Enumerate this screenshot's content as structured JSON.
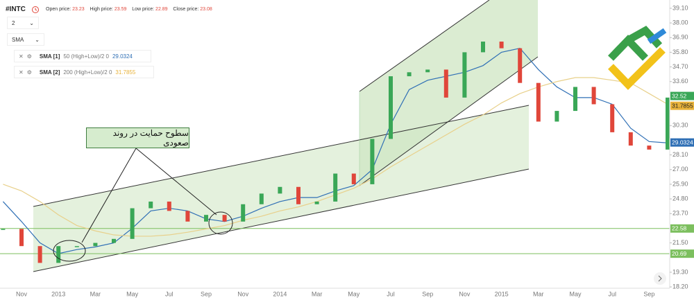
{
  "header": {
    "symbol": "#INTC",
    "open_label": "Open price:",
    "open": 23.23,
    "high_label": "High price:",
    "high": 23.59,
    "low_label": "Low price:",
    "low": 22.89,
    "close_label": "Close price:",
    "close": 23.08,
    "timeframe": "2",
    "indicator_select": "SMA"
  },
  "indicators": [
    {
      "name": "SMA [1]",
      "params": "50 (High+Low)/2 0",
      "value": 29.0324,
      "color": "#2f6fb5"
    },
    {
      "name": "SMA [2]",
      "params": "200 (High+Low)/2 0",
      "value": 31.7855,
      "color": "#e8b23a"
    }
  ],
  "annotation": "سطوح حمایت در روند صعودی",
  "chart_data": {
    "type": "candle-line",
    "categories": [
      null,
      "Nov",
      null,
      "2013",
      null,
      "Mar",
      null,
      "May",
      null,
      "Jul",
      null,
      "Sep",
      null,
      "Nov",
      null,
      "2014",
      null,
      "Mar",
      null,
      "May",
      null,
      "Jul",
      null,
      "Sep",
      null,
      "Nov",
      null,
      "2015",
      null,
      "Mar",
      null,
      "May",
      null,
      "Jul",
      null,
      "Sep",
      null
    ],
    "values": [
      22.55,
      21.26,
      20.0,
      21.26,
      21.26,
      21.5,
      21.8,
      24.1,
      24.6,
      23.9,
      23.1,
      23.6,
      23.1,
      24.4,
      25.2,
      25.7,
      24.4,
      24.6,
      26.7,
      25.9,
      29.3,
      34.0,
      34.3,
      34.5,
      32.4,
      35.8,
      36.6,
      36.1,
      33.5,
      30.6,
      31.4,
      33.2,
      31.9,
      29.8,
      28.8,
      28.5,
      32.4
    ],
    "up_color": "#3aa757",
    "down_color": "#e0463a",
    "series": [
      {
        "values": [
          24.6,
          23.1,
          21.5,
          20.7,
          21.0,
          21.2,
          21.5,
          22.6,
          23.9,
          24.1,
          23.9,
          23.3,
          23.1,
          23.5,
          24.1,
          24.6,
          24.9,
          24.9,
          25.4,
          25.8,
          27.0,
          30.4,
          33.0,
          33.7,
          34.0,
          34.3,
          34.8,
          35.8,
          36.1,
          34.5,
          33.2,
          32.4,
          32.4,
          31.9,
          30.1,
          29.1,
          29.0
        ],
        "color": "#2f6fb5"
      },
      {
        "values": [
          25.9,
          25.4,
          24.6,
          23.6,
          22.8,
          22.4,
          22.1,
          22.0,
          22.0,
          22.1,
          22.3,
          22.55,
          22.8,
          23.2,
          23.5,
          23.9,
          24.2,
          24.6,
          25.1,
          25.6,
          26.3,
          27.2,
          28.0,
          28.8,
          29.6,
          30.4,
          31.1,
          32.0,
          32.7,
          33.2,
          33.6,
          33.9,
          33.9,
          33.7,
          33.5,
          32.7,
          31.9
        ],
        "color": "#e8d08a"
      }
    ],
    "last_price": 32.52,
    "levels": [
      22.58,
      20.69
    ],
    "level_color": "#7cbf5e",
    "ylim": [
      18.1,
      39.72
    ],
    "yticks": [
      {
        "value": 39.1,
        "label": "39.10"
      },
      {
        "value": 38.0,
        "label": "38.00"
      },
      {
        "value": 36.9,
        "label": "36.90"
      },
      {
        "value": 35.8,
        "label": "35.80"
      },
      {
        "value": 34.7,
        "label": "34.70"
      },
      {
        "value": 33.6,
        "label": "33.60"
      },
      {
        "value": 30.3,
        "label": "30.30"
      },
      {
        "value": 28.1,
        "label": "28.10"
      },
      {
        "value": 27.0,
        "label": "27.00"
      },
      {
        "value": 25.9,
        "label": "25.90"
      },
      {
        "value": 24.8,
        "label": "24.80"
      },
      {
        "value": 23.7,
        "label": "23.70"
      },
      {
        "value": 21.5,
        "label": "21.50"
      },
      {
        "value": 19.3,
        "label": "19.30"
      },
      {
        "value": 18.2,
        "label": "18.20"
      }
    ],
    "grid": false
  }
}
